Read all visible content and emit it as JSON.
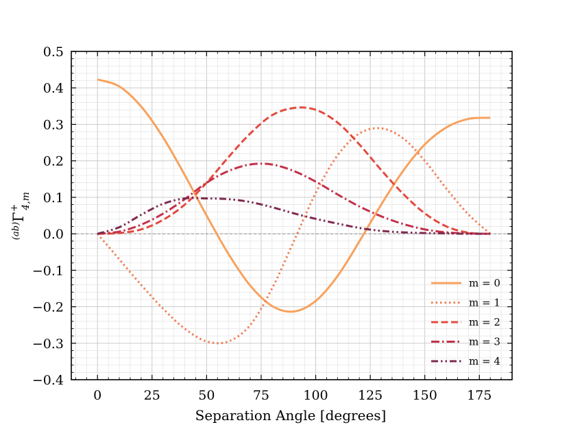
{
  "chart_data": {
    "type": "line",
    "title": "",
    "xlabel": "Separation Angle [degrees]",
    "ylabel_prefix": "(ab)",
    "ylabel_main": "Γ",
    "ylabel_sup": "+",
    "ylabel_sub": "4,m",
    "xlim": [
      -12,
      190
    ],
    "ylim": [
      -0.4,
      0.5
    ],
    "xticks": [
      0,
      25,
      50,
      75,
      100,
      125,
      150,
      175
    ],
    "xtick_labels": [
      "0",
      "25",
      "50",
      "75",
      "100",
      "125",
      "150",
      "175"
    ],
    "yticks": [
      -0.4,
      -0.3,
      -0.2,
      -0.1,
      0.0,
      0.1,
      0.2,
      0.3,
      0.4,
      0.5
    ],
    "ytick_labels": [
      "−0.4",
      "−0.3",
      "−0.2",
      "−0.1",
      "0.0",
      "0.1",
      "0.2",
      "0.3",
      "0.4",
      "0.5"
    ],
    "grid": true,
    "legend_position": "lower-right",
    "x": [
      0,
      10,
      20,
      30,
      40,
      50,
      60,
      70,
      80,
      90,
      100,
      110,
      120,
      130,
      140,
      150,
      160,
      170,
      180
    ],
    "series": [
      {
        "name": "m = 0",
        "color": "#f8a15c",
        "dash": "solid",
        "values": [
          0.423,
          0.404,
          0.349,
          0.265,
          0.161,
          0.05,
          -0.055,
          -0.142,
          -0.198,
          -0.213,
          -0.184,
          -0.116,
          -0.021,
          0.08,
          0.172,
          0.245,
          0.292,
          0.315,
          0.318
        ]
      },
      {
        "name": "m = 1",
        "color": "#f07e52",
        "dash": "dotted",
        "values": [
          0.0,
          -0.07,
          -0.14,
          -0.205,
          -0.26,
          -0.295,
          -0.295,
          -0.25,
          -0.15,
          -0.02,
          0.112,
          0.215,
          0.275,
          0.289,
          0.262,
          0.2,
          0.123,
          0.053,
          0.0
        ]
      },
      {
        "name": "m = 2",
        "color": "#e24b3f",
        "dash": "dashed",
        "values": [
          0.0,
          0.002,
          0.012,
          0.038,
          0.08,
          0.14,
          0.21,
          0.275,
          0.325,
          0.345,
          0.34,
          0.305,
          0.245,
          0.175,
          0.11,
          0.056,
          0.02,
          0.003,
          0.0
        ]
      },
      {
        "name": "m = 3",
        "color": "#c3304a",
        "dash": "dashdot",
        "values": [
          0.0,
          0.006,
          0.025,
          0.055,
          0.095,
          0.14,
          0.172,
          0.19,
          0.19,
          0.172,
          0.143,
          0.108,
          0.075,
          0.048,
          0.027,
          0.012,
          0.004,
          0.001,
          0.0
        ]
      },
      {
        "name": "m = 4",
        "color": "#7e2a4f",
        "dash": "dashdotdot",
        "values": [
          0.0,
          0.018,
          0.052,
          0.082,
          0.097,
          0.097,
          0.095,
          0.087,
          0.073,
          0.056,
          0.041,
          0.028,
          0.016,
          0.008,
          0.004,
          0.002,
          0.001,
          0.0,
          0.0
        ]
      }
    ]
  }
}
